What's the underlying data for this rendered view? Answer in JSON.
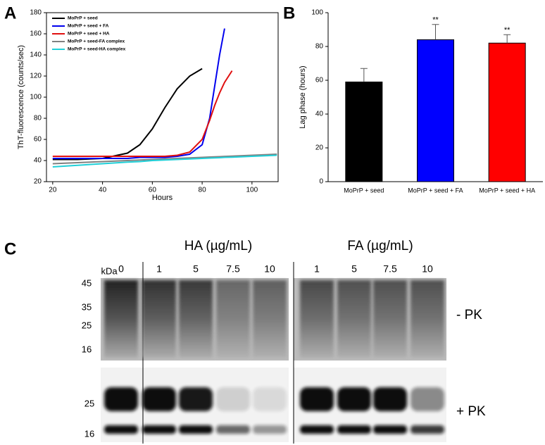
{
  "panels": {
    "a": "A",
    "b": "B",
    "c": "C"
  },
  "chart_data": [
    {
      "type": "line",
      "xlabel": "Hours",
      "ylabel": "ThT-fluorescence (counts/sec)",
      "x": [
        20,
        30,
        40,
        50,
        55,
        60,
        65,
        70,
        75,
        80,
        83,
        85,
        87,
        89,
        92,
        100,
        110
      ],
      "series": [
        {
          "name": "MoPrP + seed",
          "color": "#000000",
          "values": [
            41,
            41,
            42,
            47,
            55,
            70,
            90,
            108,
            120,
            127,
            null,
            null,
            null,
            null,
            null,
            null,
            null
          ]
        },
        {
          "name": "MoPrP + seed + FA",
          "color": "#0000ee",
          "values": [
            42,
            42,
            42,
            42,
            43,
            43,
            43,
            44,
            46,
            55,
            80,
            110,
            140,
            165,
            null,
            null,
            null
          ]
        },
        {
          "name": "MoPrP + seed + HA",
          "color": "#e01010",
          "values": [
            44,
            44,
            44,
            44,
            44,
            44,
            44,
            45,
            48,
            60,
            78,
            92,
            104,
            114,
            125,
            null,
            null
          ]
        },
        {
          "name": "MoPrP + seed-FA complex",
          "color": "#808080",
          "values": [
            37,
            38,
            39,
            40,
            40.5,
            41,
            41.5,
            42,
            42.5,
            43,
            43.3,
            43.5,
            43.7,
            43.9,
            44.2,
            45,
            46
          ]
        },
        {
          "name": "MoPrP + seed-HA complex",
          "color": "#20d0d8",
          "values": [
            34,
            35.5,
            37,
            38.5,
            39,
            40,
            40.5,
            41,
            41.5,
            42,
            42.3,
            42.5,
            42.7,
            43,
            43.2,
            44,
            45
          ]
        }
      ],
      "xlim": [
        17.5,
        110.5
      ],
      "xticks": [
        20,
        40,
        60,
        80,
        100
      ],
      "ylim": [
        20,
        180
      ],
      "yticks": [
        20,
        40,
        60,
        80,
        100,
        120,
        140,
        160,
        180
      ],
      "grid": false,
      "legend": "upper left"
    },
    {
      "type": "bar",
      "ylabel": "Lag phase (hours)",
      "categories": [
        "MoPrP + seed",
        "MoPrP + seed + FA",
        "MoPrP + seed + HA"
      ],
      "values": [
        59,
        84,
        82
      ],
      "errors": [
        8,
        9,
        5
      ],
      "colors": [
        "#000000",
        "#0000ff",
        "#ff0000"
      ],
      "annotations": [
        "",
        "**",
        "**"
      ],
      "ylim": [
        0,
        100
      ],
      "yticks": [
        0,
        20,
        40,
        60,
        80,
        100
      ],
      "grid": false
    }
  ],
  "blot": {
    "groups": [
      "HA (µg/mL)",
      "FA (µg/mL)"
    ],
    "unit": "kDa",
    "lanes": [
      "0",
      "1",
      "5",
      "7.5",
      "10",
      "1",
      "5",
      "7.5",
      "10"
    ],
    "top_markers": [
      "45",
      "35",
      "25",
      "16"
    ],
    "bottom_markers": [
      "25",
      "16"
    ],
    "top_label": "- PK",
    "bottom_label": "+ PK"
  }
}
